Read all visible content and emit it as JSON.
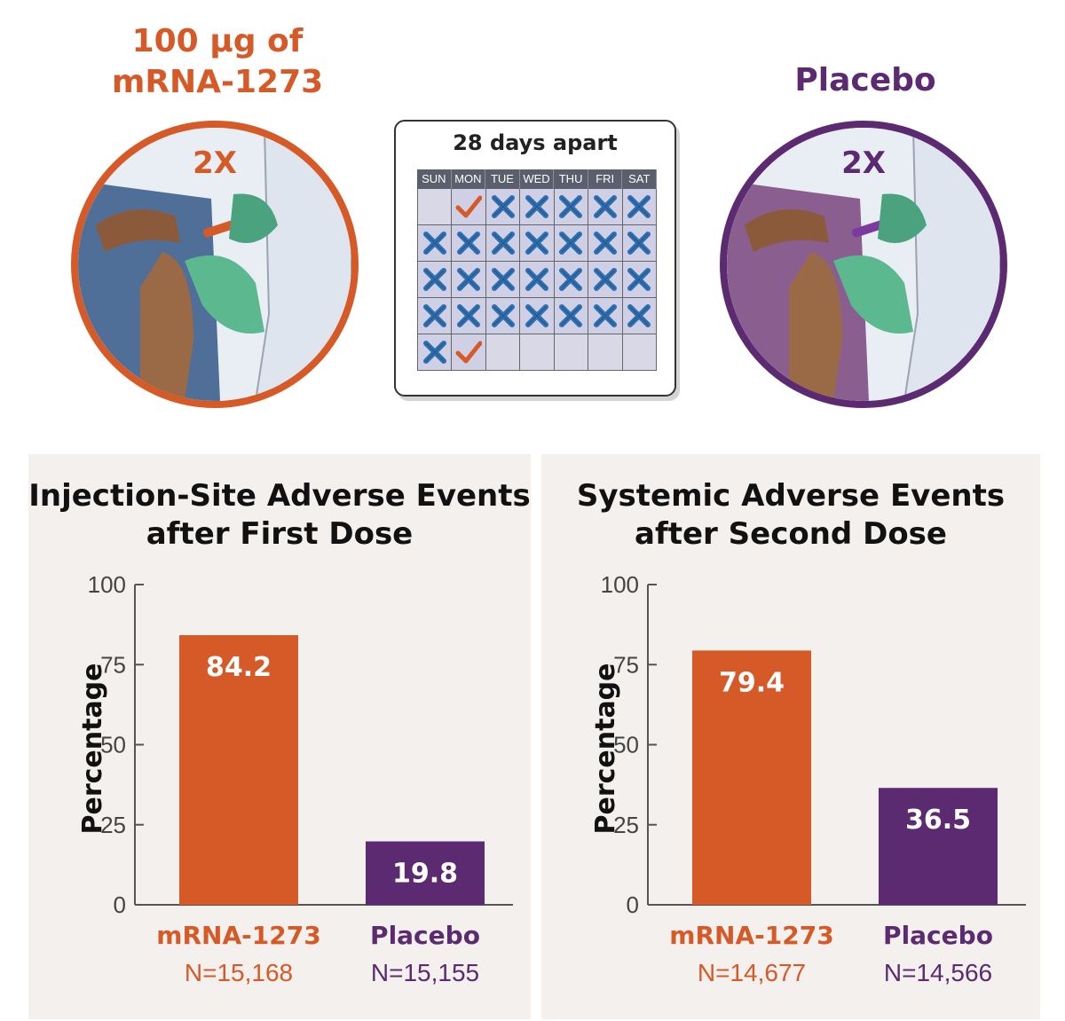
{
  "colors": {
    "orange": "#d55a27",
    "purple": "#5b2a70",
    "panel_bg": "#f4f0ee"
  },
  "header": {
    "left_title_line1": "100 μg of",
    "left_title_line2": "mRNA-1273",
    "right_title": "Placebo",
    "left_dose": "2X",
    "right_dose": "2X"
  },
  "calendar": {
    "title": "28 days apart",
    "days": [
      "SUN",
      "MON",
      "TUE",
      "WED",
      "THU",
      "FRI",
      "SAT"
    ],
    "weeks": [
      [
        "empty",
        "check",
        "x",
        "x",
        "x",
        "x",
        "x"
      ],
      [
        "x",
        "x",
        "x",
        "x",
        "x",
        "x",
        "x"
      ],
      [
        "x",
        "x",
        "x",
        "x",
        "x",
        "x",
        "x"
      ],
      [
        "x",
        "x",
        "x",
        "x",
        "x",
        "x",
        "x"
      ],
      [
        "x",
        "check",
        "empty",
        "empty",
        "empty",
        "empty",
        "empty"
      ]
    ]
  },
  "chart_data": [
    {
      "type": "bar",
      "title_line1": "Injection-Site Adverse Events",
      "title_line2": "after First Dose",
      "ylabel": "Percentage",
      "ylim": [
        0,
        100
      ],
      "yticks": [
        0,
        25,
        50,
        75,
        100
      ],
      "categories": [
        "mRNA-1273",
        "Placebo"
      ],
      "n_labels": [
        "N=15,168",
        "N=15,155"
      ],
      "values": [
        84.2,
        19.8
      ],
      "value_labels": [
        "84.2",
        "19.8"
      ],
      "colors": [
        "#d55a27",
        "#5b2a70"
      ]
    },
    {
      "type": "bar",
      "title_line1": "Systemic Adverse Events",
      "title_line2": "after Second Dose",
      "ylabel": "Percentage",
      "ylim": [
        0,
        100
      ],
      "yticks": [
        0,
        25,
        50,
        75,
        100
      ],
      "categories": [
        "mRNA-1273",
        "Placebo"
      ],
      "n_labels": [
        "N=14,677",
        "N=14,566"
      ],
      "values": [
        79.4,
        36.5
      ],
      "value_labels": [
        "79.4",
        "36.5"
      ],
      "colors": [
        "#d55a27",
        "#5b2a70"
      ]
    }
  ]
}
